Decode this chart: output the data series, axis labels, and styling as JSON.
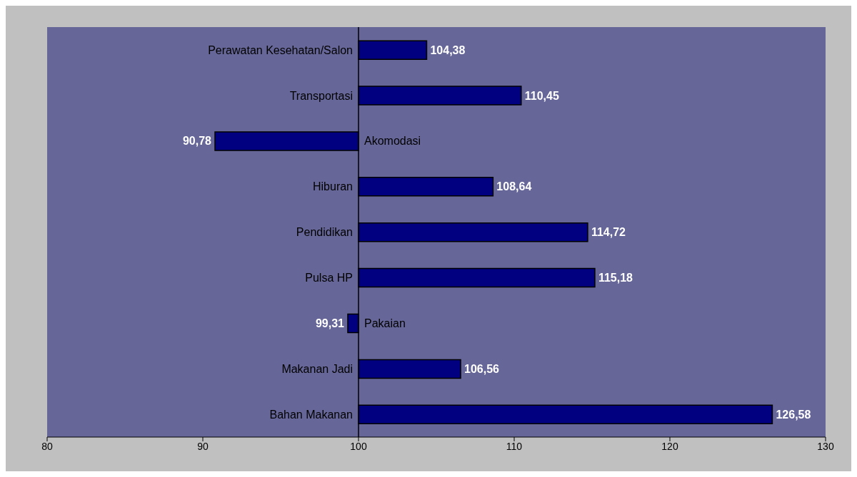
{
  "chart_data": {
    "type": "bar",
    "orientation": "horizontal",
    "categories": [
      "Perawatan Kesehatan/Salon",
      "Transportasi",
      "Akomodasi",
      "Hiburan",
      "Pendidikan",
      "Pulsa HP",
      "Pakaian",
      "Makanan Jadi",
      "Bahan Makanan"
    ],
    "base": [
      100,
      100,
      100,
      100,
      100,
      100,
      100,
      100,
      100
    ],
    "values": [
      4.38,
      10.45,
      -9.22,
      8.64,
      14.72,
      15.18,
      -0.69,
      6.56,
      26.58
    ],
    "value_labels": [
      "104,38",
      "110,45",
      "90,78",
      "108,64",
      "114,72",
      "115,18",
      "99,31",
      "106,56",
      "126,58"
    ],
    "color": "#000080",
    "xlim": [
      80,
      130
    ],
    "xticks": [
      80,
      90,
      100,
      110,
      120,
      130
    ]
  }
}
